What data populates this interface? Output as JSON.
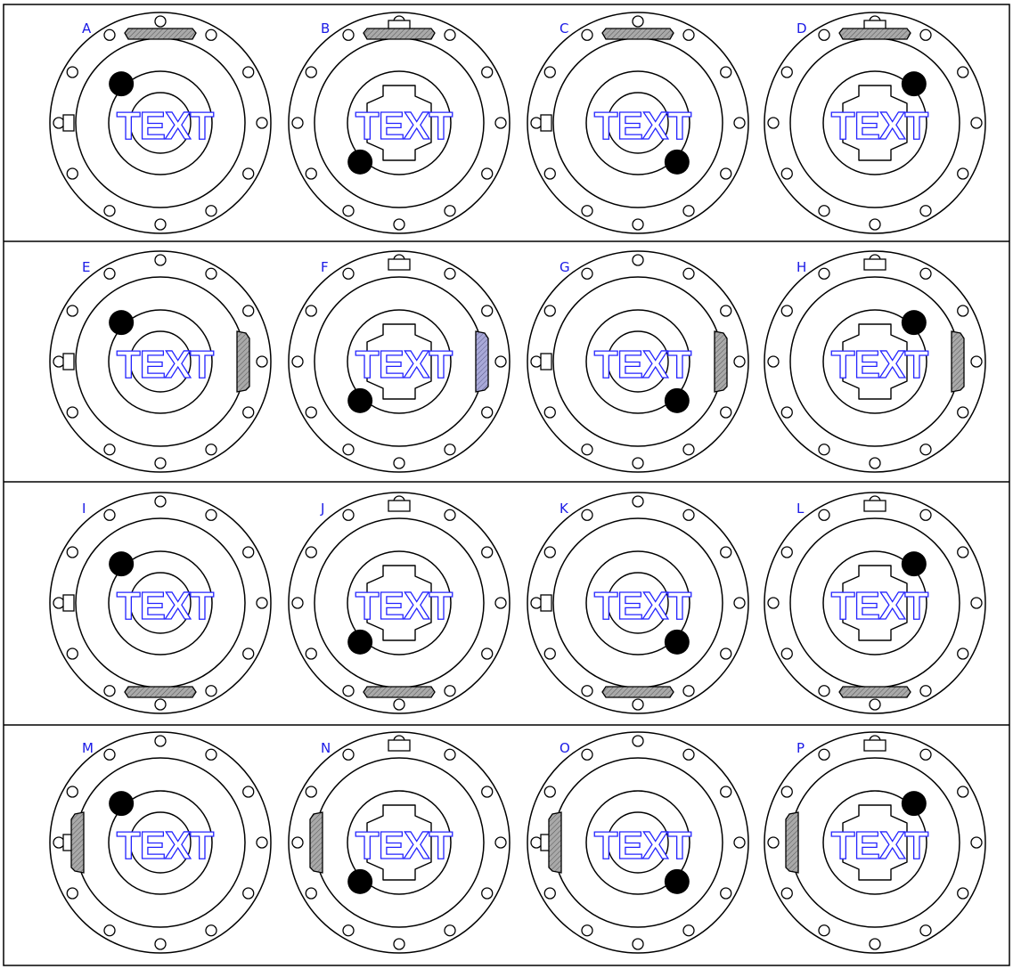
{
  "colors": {
    "grid": "#000000",
    "label": "#1a1ae6",
    "overlay_stroke": "#2323ff",
    "cam_fill": "#a9a9a9",
    "cam_fill_highlight": "#a9a9d8",
    "lobe": "#000000"
  },
  "rows": [
    {
      "cam_side": "top",
      "cells": [
        {
          "letter": "A",
          "overlay": "TEXT",
          "notch": "left",
          "lobes": "A",
          "cam_color": "gray"
        },
        {
          "letter": "B",
          "overlay": "TEXT",
          "notch": "top",
          "lobes": "B",
          "cam_color": "gray"
        },
        {
          "letter": "C",
          "overlay": "TEXT",
          "notch": "left",
          "lobes": "C",
          "cam_color": "gray"
        },
        {
          "letter": "D",
          "overlay": "TEXT",
          "notch": "top",
          "lobes": "D",
          "cam_color": "gray"
        }
      ]
    },
    {
      "cam_side": "right",
      "cells": [
        {
          "letter": "E",
          "overlay": "TEXT",
          "notch": "left",
          "lobes": "A",
          "cam_color": "gray"
        },
        {
          "letter": "F",
          "overlay": "TEXT",
          "notch": "top",
          "lobes": "B",
          "cam_color": "highlight"
        },
        {
          "letter": "G",
          "overlay": "TEXT",
          "notch": "left",
          "lobes": "C",
          "cam_color": "gray"
        },
        {
          "letter": "H",
          "overlay": "TEXT",
          "notch": "top",
          "lobes": "D",
          "cam_color": "gray"
        }
      ]
    },
    {
      "cam_side": "bottom",
      "cells": [
        {
          "letter": "I",
          "overlay": "TEXT",
          "notch": "left",
          "lobes": "A",
          "cam_color": "gray"
        },
        {
          "letter": "J",
          "overlay": "TEXT",
          "notch": "top",
          "lobes": "B",
          "cam_color": "gray"
        },
        {
          "letter": "K",
          "overlay": "TEXT",
          "notch": "left",
          "lobes": "C",
          "cam_color": "gray"
        },
        {
          "letter": "L",
          "overlay": "TEXT",
          "notch": "top",
          "lobes": "D",
          "cam_color": "gray"
        }
      ]
    },
    {
      "cam_side": "left",
      "cells": [
        {
          "letter": "M",
          "overlay": "TEXT",
          "notch": "left",
          "lobes": "A",
          "cam_color": "gray"
        },
        {
          "letter": "N",
          "overlay": "TEXT",
          "notch": "top",
          "lobes": "B",
          "cam_color": "gray"
        },
        {
          "letter": "O",
          "overlay": "TEXT",
          "notch": "left",
          "lobes": "C",
          "cam_color": "gray"
        },
        {
          "letter": "P",
          "overlay": "TEXT",
          "notch": "top",
          "lobes": "D",
          "cam_color": "gray"
        }
      ]
    }
  ]
}
